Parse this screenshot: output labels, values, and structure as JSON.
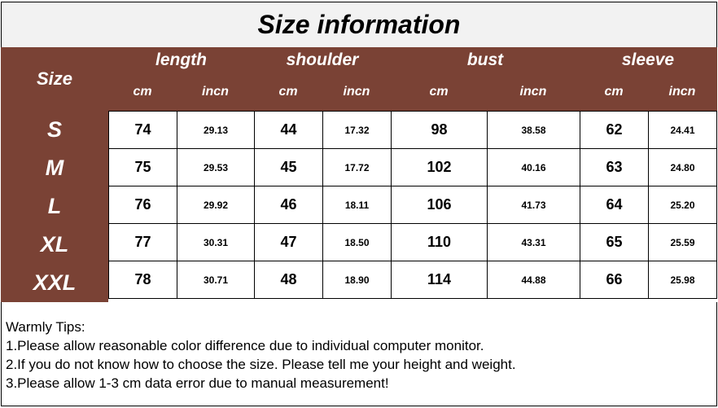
{
  "title": "Size information",
  "header": {
    "size_label": "Size",
    "groups": [
      "length",
      "shoulder",
      "bust",
      "sleeve"
    ],
    "units": [
      "cm",
      "incn",
      "cm",
      "incn",
      "cm",
      "incn",
      "cm",
      "incn"
    ]
  },
  "rows": [
    {
      "size": "S",
      "values": [
        "74",
        "29.13",
        "44",
        "17.32",
        "98",
        "38.58",
        "62",
        "24.41"
      ]
    },
    {
      "size": "M",
      "values": [
        "75",
        "29.53",
        "45",
        "17.72",
        "102",
        "40.16",
        "63",
        "24.80"
      ]
    },
    {
      "size": "L",
      "values": [
        "76",
        "29.92",
        "46",
        "18.11",
        "106",
        "41.73",
        "64",
        "25.20"
      ]
    },
    {
      "size": "XL",
      "values": [
        "77",
        "30.31",
        "47",
        "18.50",
        "110",
        "43.31",
        "65",
        "25.59"
      ]
    },
    {
      "size": "XXL",
      "values": [
        "78",
        "30.71",
        "48",
        "18.90",
        "114",
        "44.88",
        "66",
        "25.98"
      ]
    }
  ],
  "tips": {
    "heading": "Warmly Tips:",
    "items": [
      "1.Please allow reasonable color difference due to individual computer monitor.",
      "2.If you do not know how to choose the size. Please tell me your height and weight.",
      "3.Please allow 1-3 cm data error due to manual measurement!"
    ]
  },
  "colors": {
    "header_bg": "#7a4235",
    "title_bg": "#f2f2f2"
  }
}
